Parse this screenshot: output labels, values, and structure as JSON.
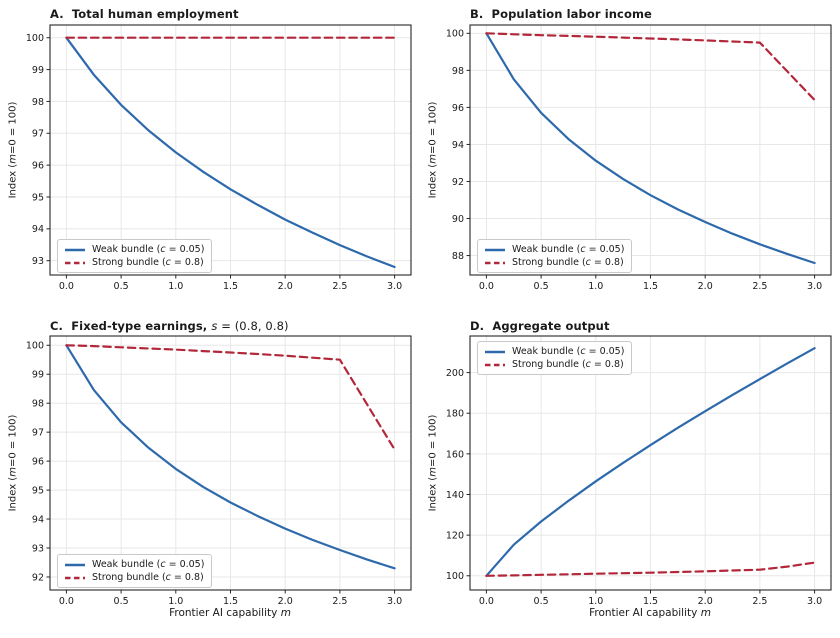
{
  "figure": {
    "colors": {
      "weak": "#2e6aab",
      "strong": "#b3273a",
      "grid": "#e7e7e7",
      "spine": "#262626",
      "text": "#1a1a1a"
    },
    "legend": {
      "weak_pre": "Weak bundle (",
      "weak_var": "c",
      "weak_post": " = 0.05)",
      "strong_pre": "Strong bundle (",
      "strong_var": "c",
      "strong_post": " = 0.8)"
    }
  },
  "chart_data": [
    {
      "type": "line",
      "panel": "A",
      "title_bold": "A.  Total human employment",
      "title_var": "",
      "title_tail": "",
      "ylabel_pre": "Index (",
      "ylabel_var": "m",
      "ylabel_post": "=0 = 100)",
      "xlim": [
        -0.15,
        3.15
      ],
      "ylim": [
        92.55,
        100.4
      ],
      "x": [
        0,
        0.25,
        0.5,
        0.75,
        1,
        1.25,
        1.5,
        1.75,
        2,
        2.25,
        2.5,
        2.75,
        3
      ],
      "xticks": [
        0,
        0.5,
        1,
        1.5,
        2,
        2.5,
        3
      ],
      "xtick_labels": [
        "0.0",
        "0.5",
        "1.0",
        "1.5",
        "2.0",
        "2.5",
        "3.0"
      ],
      "yticks": [
        93,
        94,
        95,
        96,
        97,
        98,
        99,
        100
      ],
      "ytick_labels": [
        "93",
        "94",
        "95",
        "96",
        "97",
        "98",
        "99",
        "100"
      ],
      "legend_pos": "lower-left",
      "grid": true,
      "series": [
        {
          "name": "Weak bundle (c = 0.05)",
          "color_key": "weak",
          "dash": false,
          "values": [
            100,
            98.84,
            97.89,
            97.09,
            96.4,
            95.79,
            95.24,
            94.75,
            94.29,
            93.88,
            93.49,
            93.13,
            92.8
          ]
        },
        {
          "name": "Strong bundle (c = 0.8)",
          "color_key": "strong",
          "dash": true,
          "values": [
            100,
            100,
            100,
            100,
            100,
            100,
            100,
            100,
            100,
            100,
            100,
            100,
            100
          ]
        }
      ]
    },
    {
      "type": "line",
      "panel": "B",
      "title_bold": "B.  Population labor income",
      "title_var": "",
      "title_tail": "",
      "ylabel_pre": "Index (",
      "ylabel_var": "m",
      "ylabel_post": "=0 = 100)",
      "xlim": [
        -0.15,
        3.15
      ],
      "ylim": [
        86.95,
        100.45
      ],
      "x": [
        0,
        0.25,
        0.5,
        0.75,
        1,
        1.25,
        1.5,
        1.75,
        2,
        2.25,
        2.5,
        2.75,
        3
      ],
      "xticks": [
        0,
        0.5,
        1,
        1.5,
        2,
        2.5,
        3
      ],
      "xtick_labels": [
        "0.0",
        "0.5",
        "1.0",
        "1.5",
        "2.0",
        "2.5",
        "3.0"
      ],
      "yticks": [
        88,
        90,
        92,
        94,
        96,
        98,
        100
      ],
      "ytick_labels": [
        "88",
        "90",
        "92",
        "94",
        "96",
        "98",
        "100"
      ],
      "legend_pos": "lower-left",
      "grid": true,
      "series": [
        {
          "name": "Weak bundle (c = 0.05)",
          "color_key": "weak",
          "dash": false,
          "values": [
            100,
            97.52,
            95.71,
            94.29,
            93.12,
            92.13,
            91.26,
            90.49,
            89.81,
            89.18,
            88.61,
            88.09,
            87.6
          ]
        },
        {
          "name": "Strong bundle (c = 0.8)",
          "color_key": "strong",
          "dash": true,
          "values": [
            100,
            99.95,
            99.9,
            99.86,
            99.82,
            99.77,
            99.72,
            99.67,
            99.62,
            99.56,
            99.5,
            97.95,
            96.4
          ]
        }
      ]
    },
    {
      "type": "line",
      "panel": "C",
      "title_bold": "C.  Fixed-type earnings, ",
      "title_var": "s",
      "title_tail": " = (0.8, 0.8)",
      "ylabel_pre": "Index (",
      "ylabel_var": "m",
      "ylabel_post": "=0 = 100)",
      "xlabel_pre": "Frontier AI capability ",
      "xlabel_var": "m",
      "xlim": [
        -0.15,
        3.15
      ],
      "ylim": [
        91.55,
        100.32
      ],
      "x": [
        0,
        0.25,
        0.5,
        0.75,
        1,
        1.25,
        1.5,
        1.75,
        2,
        2.25,
        2.5,
        2.75,
        3
      ],
      "xticks": [
        0,
        0.5,
        1,
        1.5,
        2,
        2.5,
        3
      ],
      "xtick_labels": [
        "0.0",
        "0.5",
        "1.0",
        "1.5",
        "2.0",
        "2.5",
        "3.0"
      ],
      "yticks": [
        92,
        93,
        94,
        95,
        96,
        97,
        98,
        99,
        100
      ],
      "ytick_labels": [
        "92",
        "93",
        "94",
        "95",
        "96",
        "97",
        "98",
        "99",
        "100"
      ],
      "legend_pos": "lower-left",
      "grid": true,
      "series": [
        {
          "name": "Weak bundle (c = 0.05)",
          "color_key": "weak",
          "dash": false,
          "values": [
            100,
            98.46,
            97.34,
            96.46,
            95.73,
            95.11,
            94.57,
            94.1,
            93.67,
            93.28,
            92.93,
            92.6,
            92.3
          ]
        },
        {
          "name": "Strong bundle (c = 0.8)",
          "color_key": "strong",
          "dash": true,
          "values": [
            100,
            99.97,
            99.93,
            99.89,
            99.85,
            99.8,
            99.75,
            99.7,
            99.64,
            99.57,
            99.5,
            97.95,
            96.4
          ]
        }
      ]
    },
    {
      "type": "line",
      "panel": "D",
      "title_bold": "D.  Aggregate output",
      "title_var": "",
      "title_tail": "",
      "ylabel_pre": "Index (",
      "ylabel_var": "m",
      "ylabel_post": "=0 = 100)",
      "xlabel_pre": "Frontier AI capability ",
      "xlabel_var": "m",
      "xlim": [
        -0.15,
        3.15
      ],
      "ylim": [
        93,
        218
      ],
      "x": [
        0,
        0.25,
        0.5,
        0.75,
        1,
        1.25,
        1.5,
        1.75,
        2,
        2.25,
        2.5,
        2.75,
        3
      ],
      "xticks": [
        0,
        0.5,
        1,
        1.5,
        2,
        2.5,
        3
      ],
      "xtick_labels": [
        "0.0",
        "0.5",
        "1.0",
        "1.5",
        "2.0",
        "2.5",
        "3.0"
      ],
      "yticks": [
        100,
        120,
        140,
        160,
        180,
        200
      ],
      "ytick_labels": [
        "100",
        "120",
        "140",
        "160",
        "180",
        "200"
      ],
      "legend_pos": "upper-left",
      "grid": true,
      "series": [
        {
          "name": "Weak bundle (c = 0.05)",
          "color_key": "weak",
          "dash": false,
          "values": [
            100,
            115.3,
            126.7,
            136.9,
            146.5,
            155.6,
            164.3,
            172.8,
            181.0,
            189.0,
            196.8,
            204.5,
            212.0
          ]
        },
        {
          "name": "Strong bundle (c = 0.8)",
          "color_key": "strong",
          "dash": true,
          "values": [
            100,
            100.2,
            100.5,
            100.75,
            101.0,
            101.25,
            101.5,
            101.85,
            102.2,
            102.6,
            103.0,
            104.5,
            106.5
          ]
        }
      ]
    }
  ]
}
